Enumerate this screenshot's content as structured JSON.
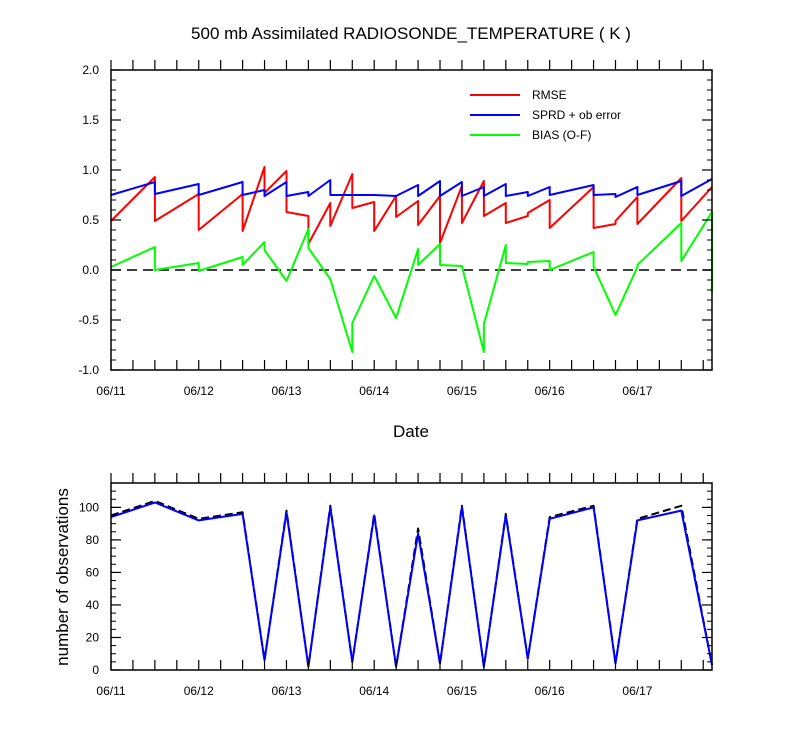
{
  "chart_data": [
    {
      "type": "line",
      "title": "500 mb Assimilated RADIOSONDE_TEMPERATURE ( K )",
      "xlabel": "Date",
      "ylabel": "",
      "ylim": [
        -1.0,
        2.0
      ],
      "xlim": [
        0,
        7
      ],
      "yticks": [
        "-1.0",
        "-0.5",
        "0.0",
        "0.5",
        "1.0",
        "1.5",
        "2.0"
      ],
      "yticks_values": [
        -1.0,
        -0.5,
        0.0,
        0.5,
        1.0,
        1.5,
        2.0
      ],
      "xtick_labels": [
        "06/11",
        "06/12",
        "06/13",
        "06/14",
        "06/15",
        "06/16",
        "06/17"
      ],
      "xtick_values": [
        0,
        1,
        2,
        3,
        4,
        5,
        6
      ],
      "zero_line": true,
      "legend_position": "top-right",
      "series": [
        {
          "name": "RMSE",
          "color": "#ff0000",
          "points": [
            [
              0,
              0.49
            ],
            [
              0.5,
              0.93
            ],
            [
              0.5,
              0.49
            ],
            [
              1.0,
              0.76
            ],
            [
              1.0,
              0.4
            ],
            [
              1.5,
              0.76
            ],
            [
              1.5,
              0.39
            ],
            [
              1.75,
              1.03
            ],
            [
              1.75,
              0.77
            ],
            [
              2.0,
              0.99
            ],
            [
              2.0,
              0.58
            ],
            [
              2.25,
              0.54
            ],
            [
              2.25,
              0.26
            ],
            [
              2.5,
              0.67
            ],
            [
              2.5,
              0.44
            ],
            [
              2.75,
              0.96
            ],
            [
              2.75,
              0.62
            ],
            [
              3.0,
              0.68
            ],
            [
              3.0,
              0.39
            ],
            [
              3.25,
              0.74
            ],
            [
              3.25,
              0.53
            ],
            [
              3.5,
              0.69
            ],
            [
              3.5,
              0.45
            ],
            [
              3.75,
              0.74
            ],
            [
              3.75,
              0.27
            ],
            [
              4.0,
              0.84
            ],
            [
              4.0,
              0.47
            ],
            [
              4.25,
              0.89
            ],
            [
              4.25,
              0.54
            ],
            [
              4.5,
              0.67
            ],
            [
              4.5,
              0.47
            ],
            [
              4.75,
              0.54
            ],
            [
              4.75,
              0.57
            ],
            [
              5.0,
              0.7
            ],
            [
              5.0,
              0.42
            ],
            [
              5.5,
              0.83
            ],
            [
              5.5,
              0.42
            ],
            [
              5.75,
              0.46
            ],
            [
              5.75,
              0.49
            ],
            [
              6.0,
              0.73
            ],
            [
              6.0,
              0.46
            ],
            [
              6.5,
              0.92
            ],
            [
              6.5,
              0.49
            ],
            [
              6.85,
              0.83
            ]
          ]
        },
        {
          "name": "SPRD + ob error",
          "color": "#0000ff",
          "points": [
            [
              0,
              0.75
            ],
            [
              0.5,
              0.88
            ],
            [
              0.5,
              0.76
            ],
            [
              1.0,
              0.86
            ],
            [
              1.0,
              0.75
            ],
            [
              1.5,
              0.88
            ],
            [
              1.5,
              0.75
            ],
            [
              1.75,
              0.8
            ],
            [
              1.75,
              0.74
            ],
            [
              2.0,
              0.88
            ],
            [
              2.0,
              0.74
            ],
            [
              2.25,
              0.78
            ],
            [
              2.25,
              0.74
            ],
            [
              2.5,
              0.9
            ],
            [
              2.5,
              0.75
            ],
            [
              2.75,
              0.75
            ],
            [
              2.75,
              0.75
            ],
            [
              3.0,
              0.75
            ],
            [
              3.0,
              0.75
            ],
            [
              3.25,
              0.74
            ],
            [
              3.25,
              0.74
            ],
            [
              3.5,
              0.85
            ],
            [
              3.5,
              0.74
            ],
            [
              3.75,
              0.89
            ],
            [
              3.75,
              0.74
            ],
            [
              4.0,
              0.88
            ],
            [
              4.0,
              0.74
            ],
            [
              4.25,
              0.83
            ],
            [
              4.25,
              0.74
            ],
            [
              4.5,
              0.86
            ],
            [
              4.5,
              0.74
            ],
            [
              4.75,
              0.78
            ],
            [
              4.75,
              0.74
            ],
            [
              5.0,
              0.83
            ],
            [
              5.0,
              0.75
            ],
            [
              5.5,
              0.85
            ],
            [
              5.5,
              0.75
            ],
            [
              5.75,
              0.76
            ],
            [
              5.75,
              0.73
            ],
            [
              6.0,
              0.83
            ],
            [
              6.0,
              0.75
            ],
            [
              6.5,
              0.89
            ],
            [
              6.5,
              0.74
            ],
            [
              6.85,
              0.91
            ]
          ]
        },
        {
          "name": "BIAS (O-F)",
          "color": "#00ff00",
          "points": [
            [
              0,
              0.03
            ],
            [
              0.5,
              0.23
            ],
            [
              0.5,
              0.0
            ],
            [
              1.0,
              0.07
            ],
            [
              1.0,
              -0.01
            ],
            [
              1.5,
              0.13
            ],
            [
              1.5,
              0.05
            ],
            [
              1.75,
              0.28
            ],
            [
              1.75,
              0.2
            ],
            [
              2.0,
              -0.11
            ],
            [
              2.25,
              0.41
            ],
            [
              2.25,
              0.22
            ],
            [
              2.5,
              -0.09
            ],
            [
              2.75,
              -0.82
            ],
            [
              2.75,
              -0.53
            ],
            [
              3.0,
              -0.06
            ],
            [
              3.25,
              -0.48
            ],
            [
              3.5,
              0.21
            ],
            [
              3.5,
              0.05
            ],
            [
              3.75,
              0.26
            ],
            [
              3.75,
              0.05
            ],
            [
              4.0,
              0.04
            ],
            [
              4.25,
              -0.82
            ],
            [
              4.25,
              -0.54
            ],
            [
              4.5,
              0.25
            ],
            [
              4.5,
              0.07
            ],
            [
              4.75,
              0.06
            ],
            [
              4.75,
              0.08
            ],
            [
              5.0,
              0.09
            ],
            [
              5.0,
              0.0
            ],
            [
              5.5,
              0.18
            ],
            [
              5.5,
              0.03
            ],
            [
              5.75,
              -0.45
            ],
            [
              6.0,
              0.03
            ],
            [
              6.0,
              0.05
            ],
            [
              6.5,
              0.47
            ],
            [
              6.5,
              0.09
            ],
            [
              6.85,
              0.58
            ],
            [
              6.85,
              -0.22
            ]
          ]
        }
      ]
    },
    {
      "type": "line",
      "title": "",
      "xlabel": "",
      "ylabel": "number of observations",
      "ylim": [
        0,
        115
      ],
      "xlim": [
        0,
        7
      ],
      "yticks": [
        "0",
        "20",
        "40",
        "60",
        "80",
        "100"
      ],
      "yticks_values": [
        0,
        20,
        40,
        60,
        80,
        100
      ],
      "xtick_labels": [
        "06/11",
        "06/12",
        "06/13",
        "06/14",
        "06/15",
        "06/16",
        "06/17"
      ],
      "xtick_values": [
        0,
        1,
        2,
        3,
        4,
        5,
        6
      ],
      "series": [
        {
          "name": "dashed",
          "color": "#000000",
          "dashed": true,
          "points": [
            [
              0,
              95
            ],
            [
              0.5,
              104
            ],
            [
              1.0,
              93
            ],
            [
              1.5,
              97
            ],
            [
              1.75,
              6
            ],
            [
              2.0,
              98
            ],
            [
              2.25,
              2
            ],
            [
              2.5,
              101
            ],
            [
              2.75,
              5
            ],
            [
              3.0,
              96
            ],
            [
              3.25,
              2
            ],
            [
              3.5,
              87
            ],
            [
              3.75,
              4
            ],
            [
              4.0,
              101
            ],
            [
              4.25,
              2
            ],
            [
              4.5,
              96
            ],
            [
              4.75,
              7
            ],
            [
              5.0,
              94
            ],
            [
              5.5,
              101
            ],
            [
              5.75,
              4
            ],
            [
              6.0,
              93
            ],
            [
              6.5,
              101
            ],
            [
              6.85,
              3
            ]
          ]
        },
        {
          "name": "solid",
          "color": "#0000ff",
          "dashed": false,
          "points": [
            [
              0,
              94
            ],
            [
              0.5,
              103
            ],
            [
              1.0,
              92
            ],
            [
              1.5,
              96
            ],
            [
              1.75,
              6
            ],
            [
              2.0,
              97
            ],
            [
              2.25,
              2
            ],
            [
              2.5,
              100
            ],
            [
              2.75,
              5
            ],
            [
              3.0,
              95
            ],
            [
              3.25,
              2
            ],
            [
              3.5,
              84
            ],
            [
              3.75,
              4
            ],
            [
              4.0,
              100
            ],
            [
              4.25,
              2
            ],
            [
              4.5,
              95
            ],
            [
              4.75,
              7
            ],
            [
              5.0,
              93
            ],
            [
              5.5,
              100
            ],
            [
              5.75,
              4
            ],
            [
              6.0,
              92
            ],
            [
              6.5,
              98
            ],
            [
              6.85,
              3
            ]
          ]
        }
      ]
    }
  ]
}
